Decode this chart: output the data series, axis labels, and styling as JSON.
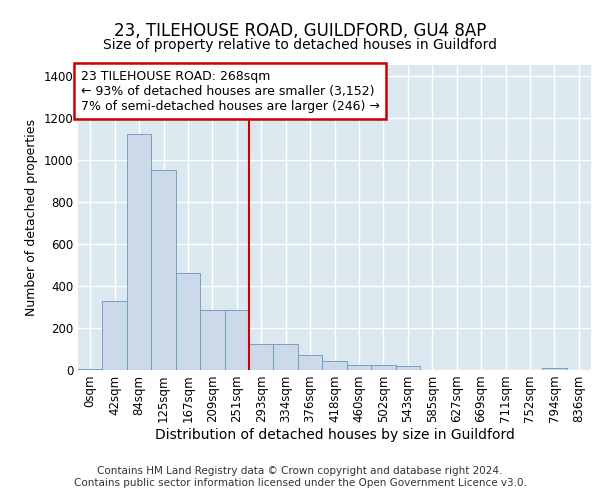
{
  "title1": "23, TILEHOUSE ROAD, GUILDFORD, GU4 8AP",
  "title2": "Size of property relative to detached houses in Guildford",
  "xlabel": "Distribution of detached houses by size in Guildford",
  "ylabel": "Number of detached properties",
  "footer1": "Contains HM Land Registry data © Crown copyright and database right 2024.",
  "footer2": "Contains public sector information licensed under the Open Government Licence v3.0.",
  "annotation_line1": "23 TILEHOUSE ROAD: 268sqm",
  "annotation_line2": "← 93% of detached houses are smaller (3,152)",
  "annotation_line3": "7% of semi-detached houses are larger (246) →",
  "bar_labels": [
    "0sqm",
    "42sqm",
    "84sqm",
    "125sqm",
    "167sqm",
    "209sqm",
    "251sqm",
    "293sqm",
    "334sqm",
    "376sqm",
    "418sqm",
    "460sqm",
    "502sqm",
    "543sqm",
    "585sqm",
    "627sqm",
    "669sqm",
    "711sqm",
    "752sqm",
    "794sqm",
    "836sqm"
  ],
  "bar_values": [
    5,
    330,
    1120,
    950,
    460,
    285,
    285,
    125,
    125,
    70,
    45,
    25,
    25,
    20,
    0,
    0,
    0,
    0,
    0,
    10,
    0
  ],
  "bar_color": "#ccd9e8",
  "bar_edge_color": "#6699bb",
  "red_line_x": 6.5,
  "ylim": [
    0,
    1450
  ],
  "yticks": [
    0,
    200,
    400,
    600,
    800,
    1000,
    1200,
    1400
  ],
  "background_color": "#dce8f0",
  "grid_color": "#ffffff",
  "annotation_box_edge_color": "#cc0000",
  "red_line_color": "#cc0000",
  "title1_fontsize": 12,
  "title2_fontsize": 10,
  "xlabel_fontsize": 10,
  "ylabel_fontsize": 9,
  "tick_fontsize": 8.5,
  "annotation_fontsize": 9,
  "footer_fontsize": 7.5,
  "fig_bg": "#ffffff"
}
